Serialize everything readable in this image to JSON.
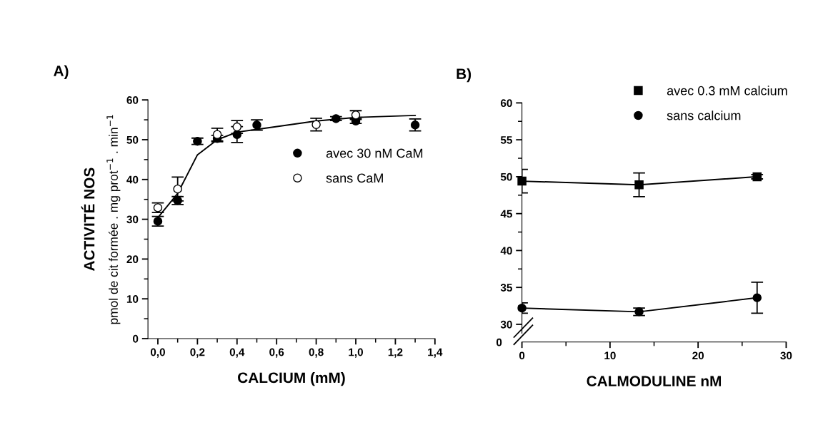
{
  "chart_data": [
    {
      "type": "scatter",
      "title": "A)",
      "xlabel": "CALCIUM (mM)",
      "ylabel": "ACTIVITÉ NOS\npmol de cit formée . mg prot$^{−1}$ . min$^{−1}$",
      "xlim": [
        -0.05,
        1.4
      ],
      "xticks": [
        {
          "value": 0,
          "label": "0,0"
        },
        {
          "value": 0.2,
          "label": "0,2"
        },
        {
          "value": 0.4,
          "label": "0,4"
        },
        {
          "value": 0.6,
          "label": "0,6"
        },
        {
          "value": 0.8,
          "label": "0,8"
        },
        {
          "value": 1.0,
          "label": "1,0"
        },
        {
          "value": 1.2,
          "label": "1,2"
        },
        {
          "value": 1.4,
          "label": "1,4"
        }
      ],
      "ylim": [
        0,
        60
      ],
      "yticks": [
        0,
        10,
        20,
        30,
        40,
        50,
        60
      ],
      "grid": false,
      "legend": "right",
      "series": [
        {
          "type": "line",
          "color": "#000000",
          "marker": "none",
          "x": [
            0,
            0.1,
            0.2,
            0.3,
            0.4,
            0.5,
            0.8,
            1.0,
            1.3
          ],
          "values": [
            30.4,
            36.5,
            46.2,
            50.0,
            51.9,
            52.6,
            54.7,
            55.6,
            56.1
          ]
        },
        {
          "name": "avec 30 nM CaM",
          "type": "scatter",
          "color": "#000000",
          "marker": "circle",
          "x": [
            0,
            0.1,
            0.2,
            0.3,
            0.4,
            0.5,
            0.9,
            1.0,
            1.3
          ],
          "values": [
            29.5,
            34.7,
            49.6,
            50.3,
            51.3,
            53.7,
            55.3,
            54.7,
            53.7
          ],
          "errors": [
            1.2,
            1.0,
            0.8,
            0.8,
            2.0,
            1.3,
            0.5,
            0.6,
            1.5
          ]
        },
        {
          "name": "sans CaM",
          "type": "scatter",
          "color": "#ffffff",
          "marker": "circle",
          "x": [
            0,
            0.1,
            0.3,
            0.4,
            0.8,
            1.0
          ],
          "values": [
            32.9,
            37.6,
            51.3,
            53.2,
            53.8,
            56.2
          ],
          "errors": [
            1.2,
            3.0,
            1.6,
            1.6,
            1.6,
            1.1
          ]
        }
      ]
    },
    {
      "type": "line",
      "title": "B)",
      "xlabel": "CALMODULINE nM",
      "xlim": [
        0,
        30
      ],
      "xticks": [
        0,
        10,
        20,
        30
      ],
      "ylim": [
        27.6,
        60
      ],
      "yticks": [
        30,
        35,
        40,
        45,
        50,
        55,
        60
      ],
      "grid": false,
      "legend": "top right",
      "annotations": [
        "0"
      ],
      "series": [
        {
          "name": "avec 0.3 mM calcium",
          "color": "#000000",
          "marker": "square",
          "x": [
            0,
            13.3,
            26.7
          ],
          "values": [
            49.4,
            48.9,
            50.0
          ],
          "errors": [
            1.6,
            1.6,
            0.3
          ]
        },
        {
          "name": "sans calcium",
          "color": "#000000",
          "marker": "circle",
          "x": [
            0,
            13.3,
            26.7
          ],
          "values": [
            32.2,
            31.7,
            33.6
          ],
          "errors": [
            0.7,
            0.5,
            2.1
          ]
        }
      ]
    }
  ]
}
